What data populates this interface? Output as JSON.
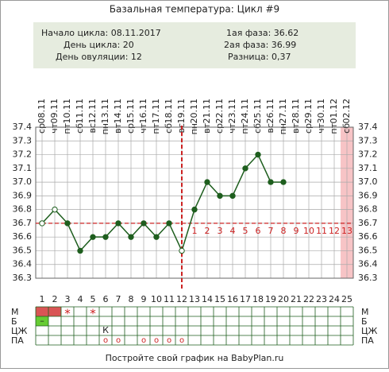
{
  "title": "Базальная температура: Цикл #9",
  "info": {
    "start": "Начало цикла: 08.11.2017",
    "cycle_day": "День цикла: 20",
    "ovulation": "День овуляции: 12",
    "phase1": "1ая фаза: 36.62",
    "phase2": "2ая фаза: 36.99",
    "difference": "Разница: 0,37"
  },
  "footer": "Постройте свой график на BabyPlan.ru",
  "chart_data": {
    "type": "line",
    "x": [
      1,
      2,
      3,
      4,
      5,
      6,
      7,
      8,
      9,
      10,
      11,
      12,
      13,
      14,
      15,
      16,
      17,
      18,
      19,
      20,
      21,
      22,
      23,
      24,
      25
    ],
    "dates": [
      "08.11",
      "09.11",
      "10.11",
      "11.11",
      "12.11",
      "13.11",
      "14.11",
      "15.11",
      "16.11",
      "17.11",
      "18.11",
      "19.11",
      "20.11",
      "21.11",
      "22.11",
      "23.11",
      "24.11",
      "25.11",
      "26.11",
      "27.11",
      "28.11",
      "29.11",
      "30.11",
      "01.12",
      "02.12"
    ],
    "weekdays": [
      "ср",
      "чт",
      "пт",
      "сб",
      "вс",
      "пн",
      "вт",
      "ср",
      "чт",
      "пт",
      "сб",
      "вс",
      "пн",
      "вт",
      "ср",
      "чт",
      "пт",
      "сб",
      "вс",
      "пн",
      "вт",
      "ср",
      "чт",
      "пт",
      "сб"
    ],
    "series": [
      {
        "color": "#1e5e1e",
        "values": [
          36.7,
          36.8,
          36.7,
          36.5,
          36.6,
          36.6,
          36.7,
          36.6,
          36.7,
          36.6,
          36.7,
          36.5,
          36.8,
          37.0,
          36.9,
          36.9,
          37.1,
          37.2,
          37.0,
          37.0,
          null,
          null,
          null,
          null,
          null
        ]
      }
    ],
    "open_points": [
      1,
      2,
      12
    ],
    "ylim": [
      36.3,
      37.4
    ],
    "yticks": [
      36.3,
      36.4,
      36.5,
      36.6,
      36.7,
      36.8,
      36.9,
      {
        "value": 37,
        "label": "37.0"
      },
      37.1,
      37.2,
      37.3,
      37.4
    ],
    "cover_line": 36.7,
    "ovulation_day": 12,
    "marker_color": "#cc2222",
    "luteal_start": 13,
    "luteal_days": [
      1,
      2,
      3,
      4,
      5,
      6,
      7,
      8,
      9,
      10,
      11,
      12,
      13
    ],
    "highlight_day": 25,
    "highlight_color": "#f7c4c6",
    "rows": [
      {
        "label": "М",
        "marks": [
          {
            "day": 1,
            "fill": "#d95555"
          },
          {
            "day": 2,
            "fill": "#d95555"
          },
          {
            "day": 3,
            "text": "*"
          },
          {
            "day": 5,
            "text": "*"
          }
        ]
      },
      {
        "label": "Б",
        "marks": [
          {
            "day": 1,
            "fill": "#66cc33",
            "text": "–"
          }
        ]
      },
      {
        "label": "ЦЖ",
        "marks": [
          {
            "day": 6,
            "text": "К"
          }
        ]
      },
      {
        "label": "ПА",
        "marks": [
          {
            "day": 6,
            "text": "o"
          },
          {
            "day": 7,
            "text": "o"
          },
          {
            "day": 9,
            "text": "o"
          },
          {
            "day": 10,
            "text": "o"
          },
          {
            "day": 11,
            "text": "o"
          },
          {
            "day": 12,
            "text": "o"
          }
        ]
      }
    ]
  }
}
